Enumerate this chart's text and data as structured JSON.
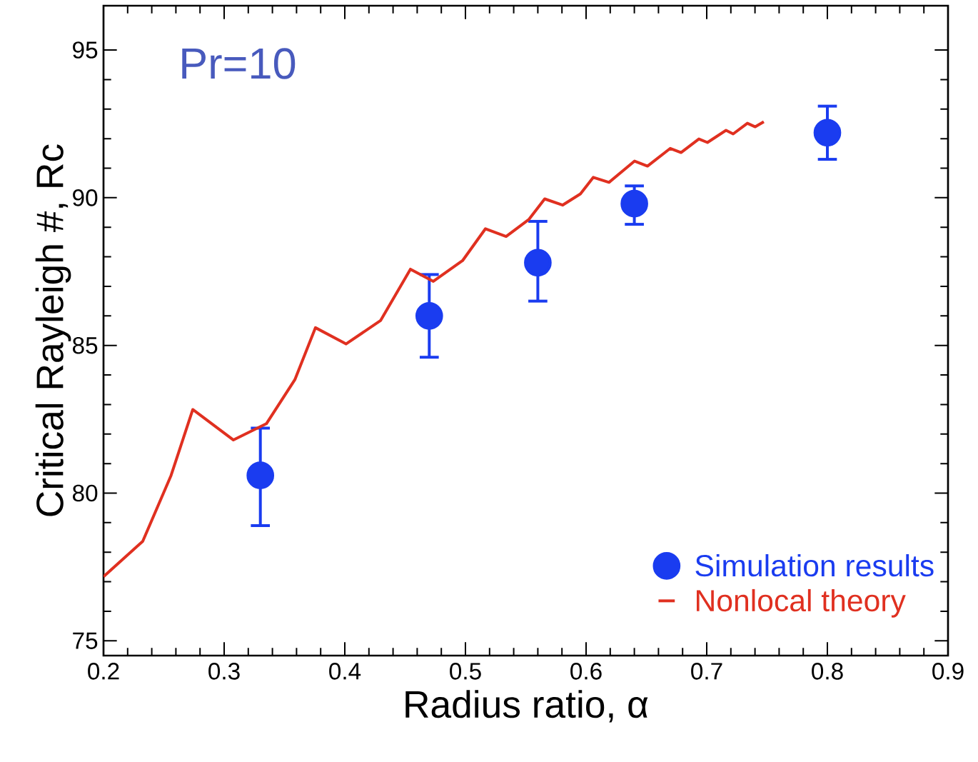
{
  "chart_data": {
    "type": "scatter",
    "xlabel": "Radius ratio, α",
    "ylabel": "Critical Rayleigh #, Rc",
    "annotations": [
      "Pr=10"
    ],
    "xlim": [
      0.2,
      0.9
    ],
    "ylim": [
      74.5,
      96.5
    ],
    "xticks": [
      0.2,
      0.3,
      0.4,
      0.5,
      0.6,
      0.7,
      0.8,
      0.9
    ],
    "yticks": [
      75,
      80,
      85,
      90,
      95
    ],
    "legend": "bottom right",
    "series": [
      {
        "name": "Simulation results",
        "marker": "circle",
        "color": "#1a3cf0",
        "x": [
          0.33,
          0.47,
          0.56,
          0.64,
          0.8
        ],
        "values": [
          80.6,
          86.0,
          87.8,
          89.8,
          92.2
        ],
        "errors": [
          [
            78.9,
            82.2
          ],
          [
            84.6,
            87.4
          ],
          [
            86.5,
            89.2
          ],
          [
            89.1,
            90.4
          ],
          [
            91.3,
            93.1
          ]
        ]
      },
      {
        "name": "Nonlocal theory",
        "type": "line",
        "color": "#e03020",
        "x": [
          0.2,
          0.2325,
          0.256,
          0.274,
          0.3077,
          0.335,
          0.3586,
          0.3757,
          0.401,
          0.4296,
          0.4544,
          0.4734,
          0.4976,
          0.5166,
          0.5337,
          0.5527,
          0.5657,
          0.5805,
          0.5953,
          0.606,
          0.619,
          0.6402,
          0.6509,
          0.6698,
          0.6787,
          0.6935,
          0.7006,
          0.716,
          0.7219,
          0.7337,
          0.7402,
          0.7473
        ],
        "values": [
          77.17,
          78.37,
          80.6,
          82.83,
          81.8,
          82.35,
          83.84,
          85.6,
          85.05,
          85.84,
          87.58,
          87.17,
          87.87,
          88.95,
          88.69,
          89.27,
          89.96,
          89.75,
          90.13,
          90.69,
          90.52,
          91.24,
          91.07,
          91.67,
          91.53,
          91.99,
          91.87,
          92.28,
          92.16,
          92.52,
          92.4,
          92.57
        ]
      }
    ]
  }
}
